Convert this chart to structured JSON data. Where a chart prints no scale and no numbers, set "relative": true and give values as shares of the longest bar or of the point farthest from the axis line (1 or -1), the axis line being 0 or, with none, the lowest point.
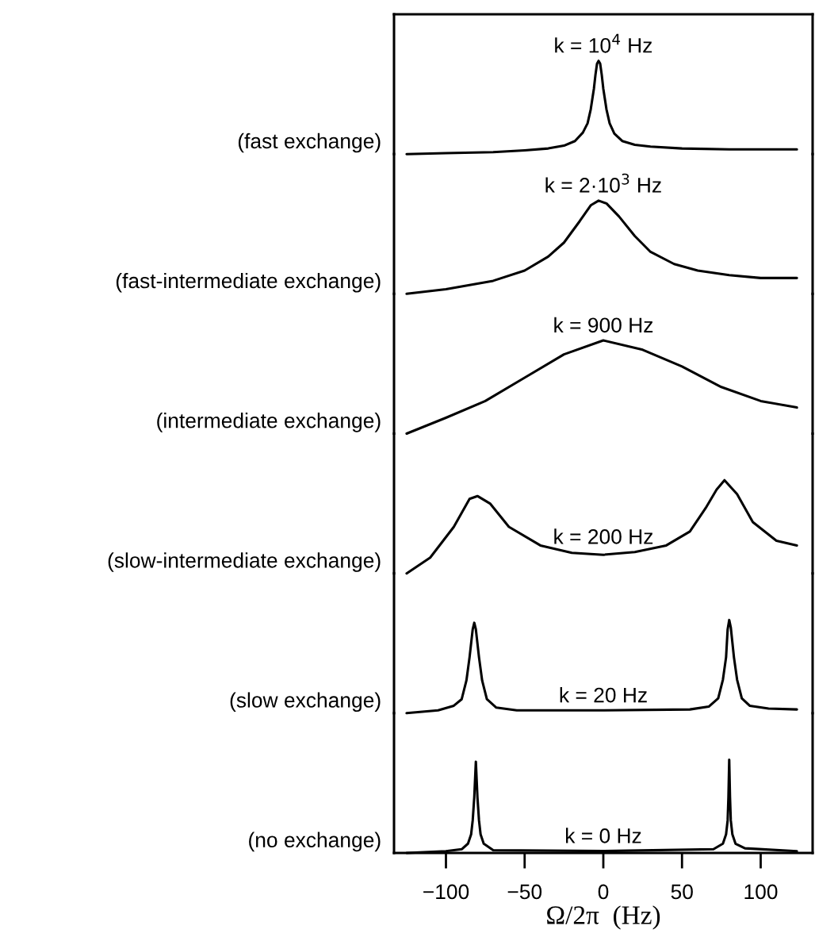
{
  "chart_data": [
    {
      "type": "line",
      "relative": true,
      "ylabel": "(fast exchange)",
      "annotations": [
        "k = 10$^{4}$ Hz"
      ],
      "xlim": [
        -133,
        133
      ],
      "tick_labels": false,
      "x": [
        -125,
        -100,
        -70,
        -50,
        -35,
        -25,
        -18,
        -13,
        -10,
        -8,
        -6,
        -5,
        -4,
        -3,
        -2,
        -1,
        0,
        2,
        4,
        7,
        12,
        20,
        30,
        50,
        80,
        123
      ],
      "series": [
        {
          "color": "#000000",
          "values": [
            0,
            0.01,
            0.02,
            0.04,
            0.06,
            0.09,
            0.14,
            0.23,
            0.33,
            0.48,
            0.7,
            0.85,
            0.97,
            1,
            0.97,
            0.85,
            0.7,
            0.48,
            0.33,
            0.22,
            0.14,
            0.1,
            0.08,
            0.06,
            0.05,
            0.05
          ]
        }
      ]
    },
    {
      "type": "line",
      "relative": true,
      "ylabel": "(fast-intermediate exchange)",
      "annotations": [
        "k = 2·10$^{3}$ Hz"
      ],
      "xlim": [
        -133,
        133
      ],
      "tick_labels": false,
      "x": [
        -125,
        -100,
        -70,
        -50,
        -35,
        -25,
        -15,
        -8,
        -3,
        2,
        10,
        20,
        30,
        45,
        60,
        80,
        100,
        123
      ],
      "series": [
        {
          "color": "#000000",
          "values": [
            0,
            0.05,
            0.14,
            0.25,
            0.4,
            0.55,
            0.78,
            0.95,
            1,
            0.97,
            0.83,
            0.62,
            0.45,
            0.32,
            0.25,
            0.2,
            0.17,
            0.17
          ]
        }
      ]
    },
    {
      "type": "line",
      "relative": true,
      "ylabel": "(intermediate exchange)",
      "annotations": [
        "k = 900 Hz"
      ],
      "xlim": [
        -133,
        133
      ],
      "tick_labels": false,
      "x": [
        -125,
        -100,
        -75,
        -50,
        -25,
        0,
        25,
        50,
        75,
        100,
        123
      ],
      "series": [
        {
          "color": "#000000",
          "values": [
            0,
            0.17,
            0.35,
            0.6,
            0.85,
            1,
            0.9,
            0.72,
            0.5,
            0.35,
            0.28
          ]
        }
      ]
    },
    {
      "type": "line",
      "relative": true,
      "ylabel": "(slow-intermediate exchange)",
      "annotations": [
        "k = 200 Hz"
      ],
      "xlim": [
        -133,
        133
      ],
      "tick_labels": false,
      "x": [
        -125,
        -110,
        -95,
        -85,
        -80,
        -72,
        -60,
        -40,
        -20,
        0,
        20,
        40,
        55,
        65,
        72,
        77,
        85,
        95,
        110,
        123
      ],
      "series": [
        {
          "color": "#000000",
          "values": [
            0,
            0.17,
            0.5,
            0.8,
            0.83,
            0.75,
            0.5,
            0.3,
            0.22,
            0.2,
            0.23,
            0.3,
            0.45,
            0.7,
            0.9,
            1,
            0.85,
            0.55,
            0.35,
            0.3
          ]
        }
      ]
    },
    {
      "type": "line",
      "relative": true,
      "ylabel": "(slow exchange)",
      "annotations": [
        "k = 20 Hz"
      ],
      "xlim": [
        -133,
        133
      ],
      "tick_labels": false,
      "x": [
        -125,
        -105,
        -95,
        -90,
        -87,
        -85,
        -83,
        -82,
        -81,
        -79,
        -77,
        -74,
        -68,
        -55,
        0,
        55,
        67,
        73,
        76,
        78,
        79,
        80,
        81,
        83,
        85,
        88,
        93,
        105,
        123
      ],
      "series": [
        {
          "color": "#000000",
          "values": [
            0,
            0.03,
            0.08,
            0.15,
            0.35,
            0.6,
            0.9,
            0.97,
            0.9,
            0.6,
            0.35,
            0.15,
            0.06,
            0.03,
            0.03,
            0.04,
            0.07,
            0.16,
            0.36,
            0.6,
            0.9,
            1,
            0.92,
            0.6,
            0.36,
            0.16,
            0.08,
            0.05,
            0.04
          ]
        }
      ]
    },
    {
      "type": "line",
      "relative": true,
      "ylabel": "(no exchange)",
      "annotations": [
        "k = 0 Hz"
      ],
      "xlabel": "Ω/2π  (Hz)",
      "xlim": [
        -133,
        133
      ],
      "xticks": [
        {
          "value": -100,
          "label": "−100"
        },
        {
          "value": -50,
          "label": "−50"
        },
        0,
        50,
        100
      ],
      "x": [
        -125,
        -100,
        -90,
        -86,
        -84,
        -83,
        -82,
        -81,
        -80,
        -79,
        -78,
        -76,
        -70,
        0,
        70,
        76,
        78,
        79,
        79.5,
        80,
        80.5,
        81,
        82,
        84,
        90,
        123
      ],
      "series": [
        {
          "color": "#000000",
          "values": [
            0,
            0.02,
            0.04,
            0.1,
            0.2,
            0.35,
            0.6,
            0.98,
            0.6,
            0.35,
            0.2,
            0.1,
            0.03,
            0.02,
            0.04,
            0.1,
            0.2,
            0.35,
            0.6,
            1,
            0.6,
            0.35,
            0.2,
            0.1,
            0.05,
            0.02
          ]
        }
      ]
    }
  ]
}
